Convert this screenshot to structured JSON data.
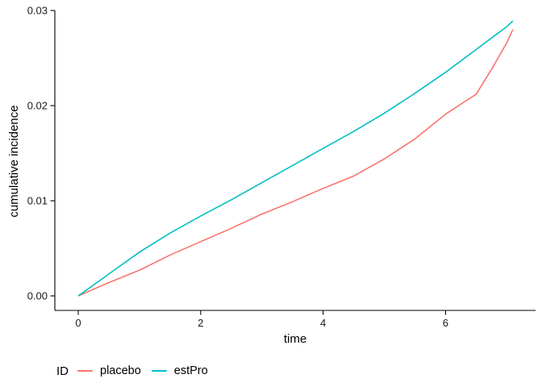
{
  "figure": {
    "background": "#ffffff",
    "axis_color": "#000000",
    "tick_label_color": "#1a1a1a"
  },
  "chart_data": {
    "type": "line",
    "title": "",
    "xlabel": "time",
    "ylabel": "cumulative incidence",
    "xlim": [
      -0.38,
      7.46
    ],
    "ylim": [
      -0.0015,
      0.03
    ],
    "x_ticks": [
      0,
      2,
      4,
      6
    ],
    "y_ticks": [
      "0.00",
      "0.01",
      "0.02",
      "0.03"
    ],
    "grid": false,
    "legend": {
      "title": "ID",
      "position": "bottom-left",
      "entries": [
        "placebo",
        "estPro"
      ]
    },
    "x": [
      0,
      0.5,
      1,
      1.5,
      2,
      2.5,
      3,
      3.5,
      4,
      4.5,
      5,
      5.5,
      6,
      6.5,
      6.75,
      7,
      7.1
    ],
    "series": [
      {
        "name": "placebo",
        "color": "#F8766D",
        "values": [
          0.0,
          0.0014,
          0.0027,
          0.0043,
          0.0057,
          0.0071,
          0.0086,
          0.0099,
          0.0113,
          0.0126,
          0.0144,
          0.0165,
          0.0191,
          0.0212,
          0.0238,
          0.0266,
          0.028
        ]
      },
      {
        "name": "estPro",
        "color": "#00BFC4",
        "values": [
          0.0,
          0.0023,
          0.0046,
          0.0066,
          0.0084,
          0.0101,
          0.0119,
          0.0137,
          0.0155,
          0.0173,
          0.0192,
          0.0213,
          0.0235,
          0.0259,
          0.0271,
          0.0283,
          0.0289
        ]
      }
    ]
  }
}
